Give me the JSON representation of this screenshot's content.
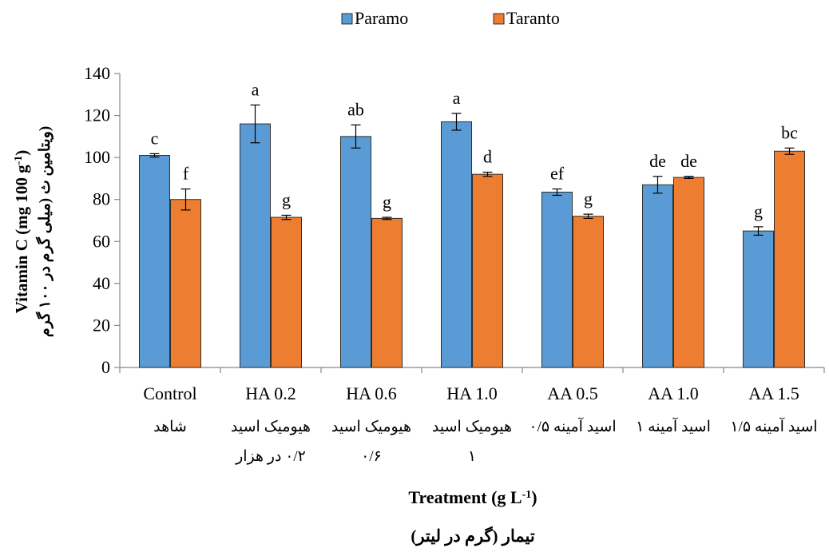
{
  "chart_data": {
    "type": "bar",
    "categories": [
      "Control",
      "HA 0.2",
      "HA 0.6",
      "HA 1.0",
      "AA  0.5",
      "AA  1.0",
      "AA  1.5"
    ],
    "categories_fa": [
      [
        "شاهد"
      ],
      [
        "هیومیک اسید",
        "۰/۲ در هزار"
      ],
      [
        "هیومیک اسید",
        "۰/۶"
      ],
      [
        "هیومیک اسید",
        "۱"
      ],
      [
        "اسید آمینه ۰/۵"
      ],
      [
        "اسید آمینه ۱"
      ],
      [
        "اسید آمینه ۱/۵"
      ]
    ],
    "series": [
      {
        "name": "Paramo",
        "color": "#5B9BD5",
        "values": [
          101,
          116,
          110,
          117,
          83.5,
          87,
          65
        ],
        "errors": [
          0.8,
          9,
          5.5,
          4,
          1.5,
          4,
          2
        ],
        "letters": [
          "c",
          "a",
          "ab",
          "a",
          "ef",
          "de",
          "g"
        ]
      },
      {
        "name": "Taranto",
        "color": "#ED7D31",
        "values": [
          80,
          71.5,
          71,
          92,
          72,
          90.5,
          103
        ],
        "errors": [
          5,
          1,
          0.5,
          1,
          1,
          0.5,
          1.5
        ],
        "letters": [
          "f",
          "g",
          "g",
          "d",
          "g",
          "de",
          "bc"
        ]
      }
    ],
    "ylim": [
      0,
      140
    ],
    "yticks": [
      0,
      20,
      40,
      60,
      80,
      100,
      120,
      140
    ],
    "ylabel_en": "Vitamin C  (mg 100 g",
    "ylabel_en_sup": "-1",
    "ylabel_en_close": ")",
    "ylabel_fa": "(ویتامین ث (میلی گرم در ۱۰۰ گرم",
    "xlabel_en": "Treatment (g L",
    "xlabel_en_sup": "-1",
    "xlabel_en_close": ")",
    "xlabel_fa": "تیمار (گرم در لیتر)",
    "legend_position": "top-center",
    "grid": false
  }
}
